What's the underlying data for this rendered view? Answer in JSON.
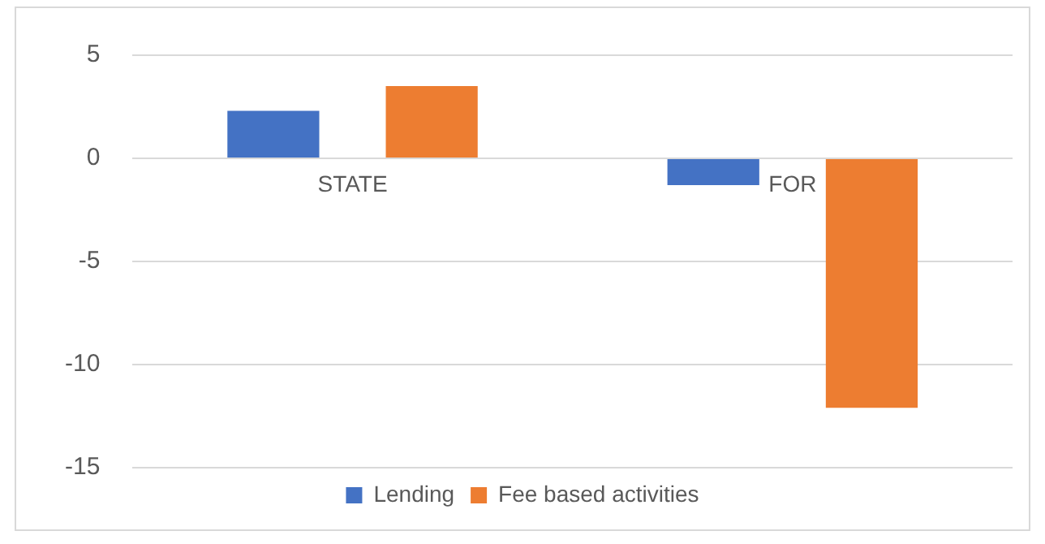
{
  "chart_data": {
    "type": "bar",
    "categories": [
      "STATE",
      "FOR"
    ],
    "series": [
      {
        "name": "Lending",
        "color": "#4472c4",
        "values": [
          2.3,
          -1.3
        ]
      },
      {
        "name": "Fee based activities",
        "color": "#ed7d31",
        "values": [
          3.5,
          -12.1
        ]
      }
    ],
    "ylim": [
      -15,
      5
    ],
    "yticks": [
      -15,
      -10,
      -5,
      0,
      5
    ],
    "grid": "y",
    "legend": "bottom"
  }
}
